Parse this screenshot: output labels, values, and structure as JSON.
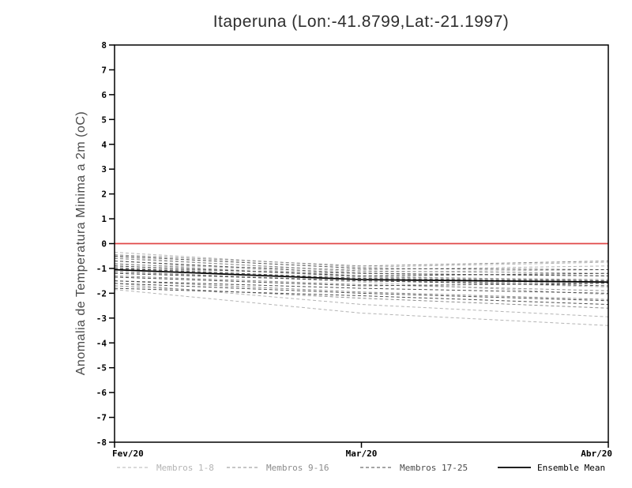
{
  "title": "Itaperuna (Lon:-41.8799,Lat:-21.1997)",
  "colors": {
    "zero_line": "#e04848",
    "frame": "#000000",
    "group1": "#b4b4b4",
    "group2": "#8c8c8c",
    "group3": "#4b4b4b",
    "mean": "#000000"
  },
  "legend": [
    {
      "label": "Membros 1-8",
      "color": "#b4b4b4",
      "style": "dashed"
    },
    {
      "label": "Membros 9-16",
      "color": "#8c8c8c",
      "style": "dashed"
    },
    {
      "label": "Membros 17-25",
      "color": "#4b4b4b",
      "style": "dashed"
    },
    {
      "label": "Ensemble Mean",
      "color": "#000000",
      "style": "solid"
    }
  ],
  "chart_data": {
    "type": "line",
    "title": "Itaperuna (Lon:-41.8799,Lat:-21.1997)",
    "xlabel": "",
    "ylabel": "Anomalia de Temperatura Minima a 2m (oC)",
    "ylim": [
      -8,
      8
    ],
    "yticks": [
      -8,
      -7,
      -6,
      -5,
      -4,
      -3,
      -2,
      -1,
      0,
      1,
      2,
      3,
      4,
      5,
      6,
      7,
      8
    ],
    "x_categories": [
      "Fev/20",
      "Mar/20",
      "Abr/20"
    ],
    "zero_line": 0,
    "grid": false,
    "legend_position": "bottom",
    "groups": [
      {
        "name": "Membros 1-8",
        "color": "#b4b4b4",
        "style": "dashed",
        "members": [
          [
            -0.35,
            -0.95,
            -0.75
          ],
          [
            -0.55,
            -1.15,
            -1.05
          ],
          [
            -0.7,
            -1.3,
            -1.5
          ],
          [
            -0.85,
            -1.05,
            -0.9
          ],
          [
            -0.95,
            -1.45,
            -1.75
          ],
          [
            -1.1,
            -1.55,
            -2.05
          ],
          [
            -1.6,
            -2.45,
            -2.95
          ],
          [
            -1.85,
            -2.8,
            -3.3
          ]
        ]
      },
      {
        "name": "Membros 9-16",
        "color": "#8c8c8c",
        "style": "dashed",
        "members": [
          [
            -0.45,
            -0.9,
            -0.7
          ],
          [
            -0.6,
            -1.1,
            -1.2
          ],
          [
            -0.8,
            -1.35,
            -1.45
          ],
          [
            -1.0,
            -1.2,
            -1.3
          ],
          [
            -1.15,
            -1.5,
            -1.6
          ],
          [
            -1.3,
            -1.65,
            -1.9
          ],
          [
            -1.5,
            -1.95,
            -2.25
          ],
          [
            -1.7,
            -2.2,
            -2.6
          ]
        ]
      },
      {
        "name": "Membros 17-25",
        "color": "#4b4b4b",
        "style": "dashed",
        "members": [
          [
            -0.5,
            -1.0,
            -1.05
          ],
          [
            -0.7,
            -1.2,
            -1.3
          ],
          [
            -0.9,
            -1.3,
            -1.2
          ],
          [
            -1.0,
            -1.4,
            -1.5
          ],
          [
            -1.2,
            -1.5,
            -1.7
          ],
          [
            -1.35,
            -1.7,
            -1.6
          ],
          [
            -1.5,
            -1.8,
            -2.0
          ],
          [
            -1.6,
            -2.0,
            -2.3
          ],
          [
            -1.8,
            -2.1,
            -2.45
          ]
        ]
      }
    ],
    "mean": {
      "name": "Ensemble Mean",
      "color": "#000000",
      "style": "solid",
      "values": [
        -1.05,
        -1.45,
        -1.55
      ]
    }
  }
}
